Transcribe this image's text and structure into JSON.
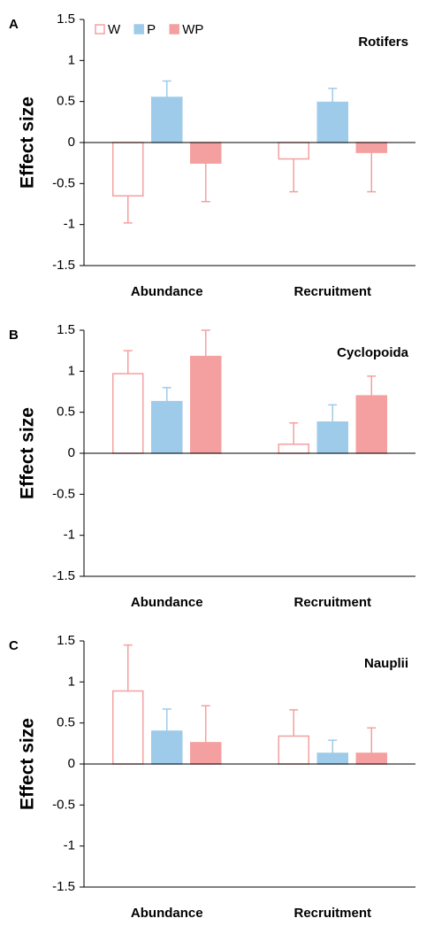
{
  "chart_data": [
    {
      "type": "bar",
      "panel_label": "A",
      "title": "Rotifers",
      "y_label": "Effect size",
      "legend": "top-left",
      "categories": [
        "Abundance",
        "Recruitment"
      ],
      "series": [
        {
          "name": "W",
          "color": "#f4a0a0",
          "hollow": true,
          "values": [
            -0.65,
            -0.2
          ],
          "errors": [
            0.33,
            0.4
          ]
        },
        {
          "name": "P",
          "color": "#9fcbea",
          "values": [
            0.55,
            0.49
          ],
          "errors": [
            0.2,
            0.17
          ]
        },
        {
          "name": "WP",
          "color": "#f4a0a0",
          "values": [
            -0.25,
            -0.12
          ],
          "errors": [
            0.47,
            0.48
          ]
        }
      ],
      "ylim": [
        -1.5,
        1.5
      ],
      "yticks": [
        -1.5,
        -1,
        -0.5,
        0,
        0.5,
        1,
        1.5
      ]
    },
    {
      "type": "bar",
      "panel_label": "B",
      "title": "Cyclopoida",
      "y_label": "Effect size",
      "categories": [
        "Abundance",
        "Recruitment"
      ],
      "series": [
        {
          "name": "W",
          "color": "#f4a0a0",
          "hollow": true,
          "values": [
            0.97,
            0.11
          ],
          "errors": [
            0.28,
            0.26
          ]
        },
        {
          "name": "P",
          "color": "#9fcbea",
          "values": [
            0.63,
            0.38
          ],
          "errors": [
            0.17,
            0.21
          ]
        },
        {
          "name": "WP",
          "color": "#f4a0a0",
          "values": [
            1.18,
            0.7
          ],
          "errors": [
            0.32,
            0.24
          ]
        }
      ],
      "ylim": [
        -1.5,
        1.5
      ],
      "yticks": [
        -1.5,
        -1,
        -0.5,
        0,
        0.5,
        1,
        1.5
      ]
    },
    {
      "type": "bar",
      "panel_label": "C",
      "title": "Nauplii",
      "y_label": "Effect size",
      "categories": [
        "Abundance",
        "Recruitment"
      ],
      "series": [
        {
          "name": "W",
          "color": "#f4a0a0",
          "hollow": true,
          "values": [
            0.89,
            0.34
          ],
          "errors": [
            0.56,
            0.32
          ]
        },
        {
          "name": "P",
          "color": "#9fcbea",
          "values": [
            0.4,
            0.13
          ],
          "errors": [
            0.27,
            0.16
          ]
        },
        {
          "name": "WP",
          "color": "#f4a0a0",
          "values": [
            0.26,
            0.13
          ],
          "errors": [
            0.45,
            0.31
          ]
        }
      ],
      "ylim": [
        -1.5,
        1.5
      ],
      "yticks": [
        -1.5,
        -1,
        -0.5,
        0,
        0.5,
        1,
        1.5
      ]
    }
  ]
}
